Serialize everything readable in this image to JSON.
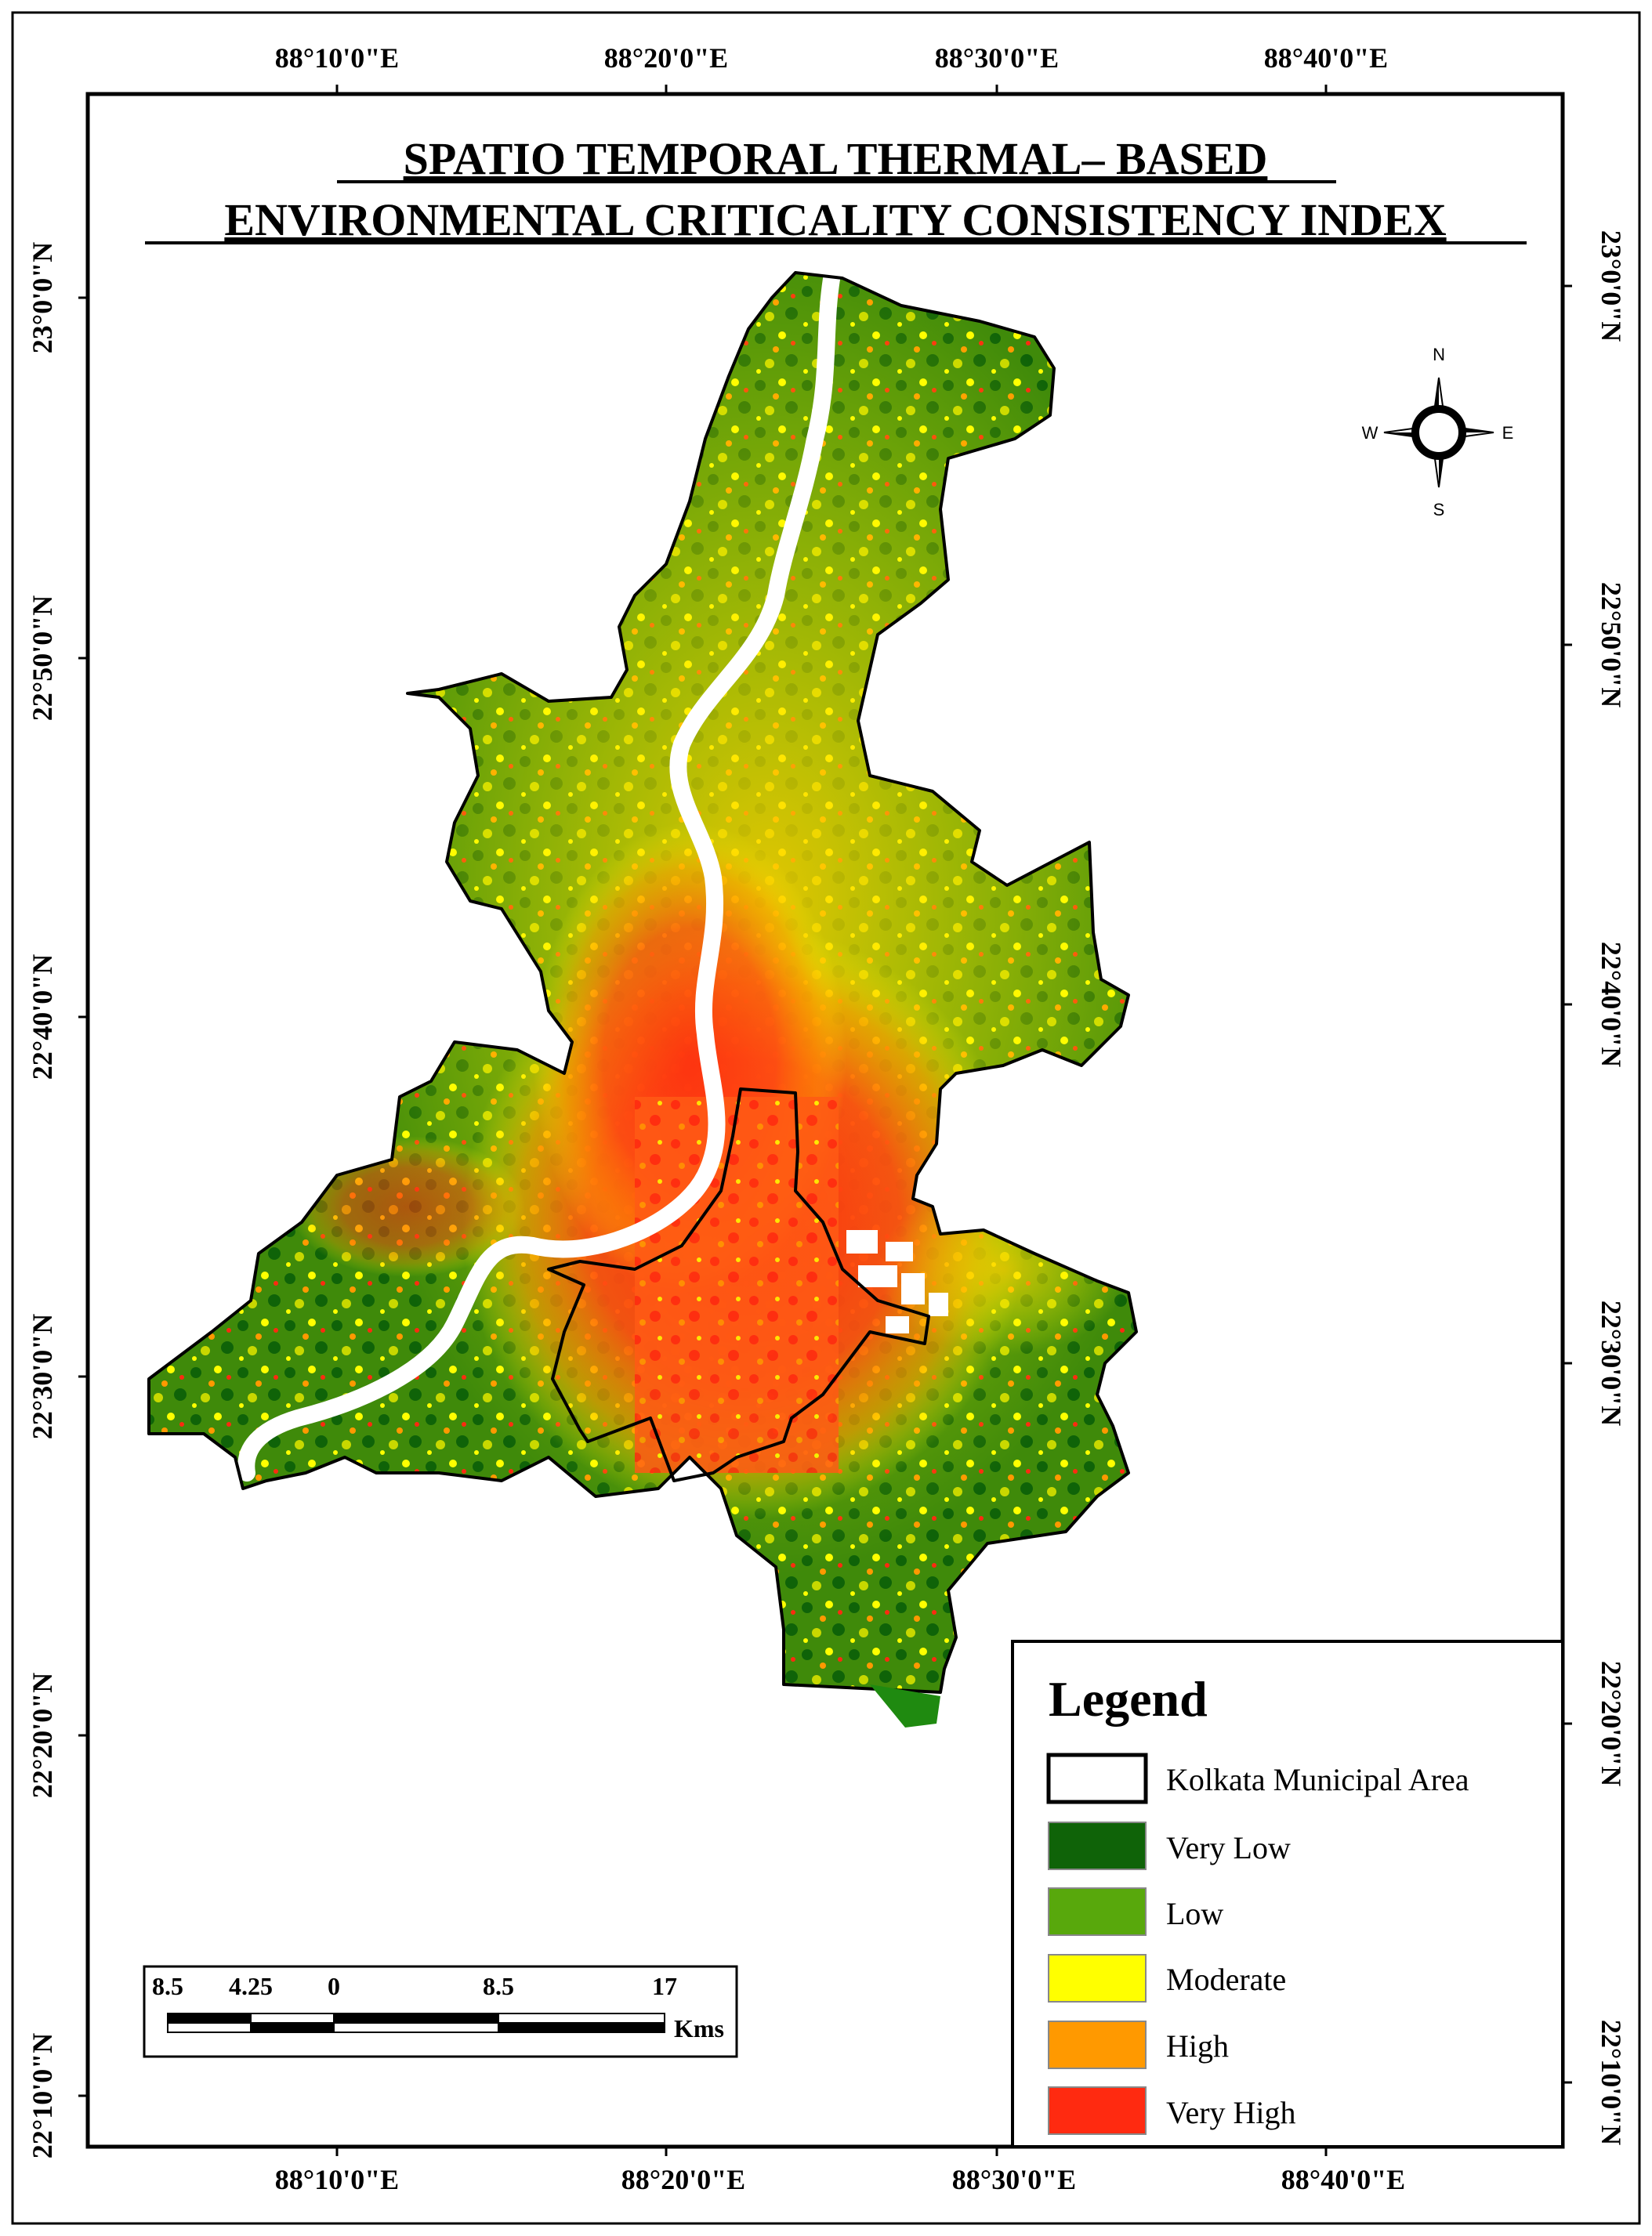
{
  "title": {
    "line1": "SPATIO  TEMPORAL THERMAL– BASED",
    "line2": "ENVIRONMENTAL CRITICALITY CONSISTENCY INDEX"
  },
  "graticule": {
    "top_longitudes": [
      "88°10'0\"E",
      "88°20'0\"E",
      "88°30'0\"E",
      "88°40'0\"E"
    ],
    "bottom_longitudes": [
      "88°10'0\"E",
      "88°20'0\"E",
      "88°30'0\"E",
      "88°40'0\"E"
    ],
    "latitudes": [
      "23°0'0\"N",
      "22°50'0\"N",
      "22°40'0\"N",
      "22°30'0\"N",
      "22°20'0\"N",
      "22°10'0\"N"
    ]
  },
  "compass": {
    "n": "N",
    "s": "S",
    "e": "E",
    "w": "W",
    "icon": "north-arrow-compass"
  },
  "legend": {
    "title": "Legend",
    "items": [
      {
        "label": "Kolkata Municipal Area",
        "color": "#ffffff"
      },
      {
        "label": "Very Low",
        "color": "#0f6308"
      },
      {
        "label": "Low",
        "color": "#58a80c"
      },
      {
        "label": "Moderate",
        "color": "#ffff00"
      },
      {
        "label": "High",
        "color": "#ff9900"
      },
      {
        "label": "Very High",
        "color": "#ff2a10"
      }
    ]
  },
  "scalebar": {
    "ticks": [
      "8.5",
      "4.25",
      "0",
      "8.5",
      "17"
    ],
    "unit": "Kms"
  },
  "colors": {
    "very_low": "#0f6308",
    "low": "#58a80c",
    "moderate": "#ffff00",
    "high": "#ff9900",
    "very_high": "#ff2a10",
    "river": "#ffffff",
    "boundary": "#000000"
  }
}
